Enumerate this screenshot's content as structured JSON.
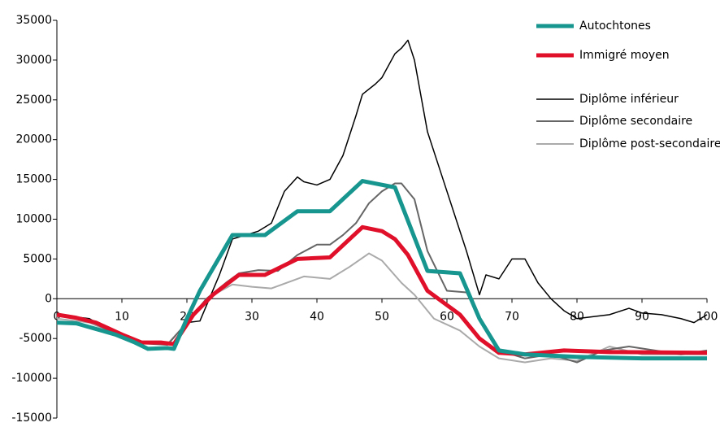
{
  "chart_data": {
    "type": "line",
    "xlim": [
      0,
      100
    ],
    "xticks": [
      0,
      10,
      20,
      30,
      40,
      50,
      60,
      70,
      80,
      90,
      100
    ],
    "ylim": [
      -15000,
      35000
    ],
    "yticks": [
      -15000,
      -10000,
      -5000,
      0,
      5000,
      10000,
      15000,
      20000,
      25000,
      30000,
      35000
    ],
    "series": [
      {
        "name": "Autochtones",
        "color": "#17958f",
        "width": 5,
        "x": [
          0,
          3,
          6,
          9,
          12,
          14,
          17,
          18,
          20,
          22,
          27,
          32,
          37,
          42,
          47,
          52,
          57,
          62,
          65,
          68,
          72,
          80,
          90,
          100
        ],
        "values": [
          -3000,
          -3100,
          -3800,
          -4500,
          -5500,
          -6300,
          -6200,
          -6300,
          -2500,
          1000,
          8000,
          8000,
          11000,
          11000,
          14800,
          14000,
          3500,
          3200,
          -2500,
          -6500,
          -7000,
          -7300,
          -7500,
          -7500
        ]
      },
      {
        "name": "Immigré moyen",
        "color": "#e0102a",
        "width": 5,
        "x": [
          0,
          3,
          6,
          10,
          13,
          16,
          18,
          21,
          24,
          28,
          32,
          37,
          42,
          47,
          50,
          52,
          54,
          57,
          62,
          65,
          68,
          72,
          78,
          85,
          100
        ],
        "values": [
          -2000,
          -2400,
          -3000,
          -4500,
          -5500,
          -5500,
          -5700,
          -2000,
          500,
          3000,
          3000,
          5000,
          5200,
          9000,
          8500,
          7500,
          5500,
          1000,
          -2000,
          -5000,
          -6800,
          -7000,
          -6500,
          -6700,
          -6800
        ]
      },
      {
        "name": "Diplôme inférieur",
        "color": "#000000",
        "width": 1.5,
        "x": [
          0,
          5,
          10,
          13,
          16,
          18,
          20,
          22,
          25,
          27,
          29,
          31,
          33,
          35,
          37,
          38,
          40,
          42,
          44,
          46,
          47,
          49,
          50,
          52,
          53,
          54,
          55,
          57,
          59,
          61,
          63,
          65,
          66,
          68,
          70,
          72,
          74,
          76,
          78,
          80,
          85,
          88,
          90,
          93,
          96,
          98,
          100
        ],
        "values": [
          -2000,
          -2500,
          -4800,
          -5500,
          -5400,
          -5600,
          -3000,
          -2800,
          3000,
          7500,
          8000,
          8500,
          9500,
          13500,
          15300,
          14700,
          14300,
          15000,
          18000,
          23000,
          25700,
          27000,
          27800,
          30800,
          31500,
          32500,
          30000,
          21000,
          16000,
          11000,
          6000,
          500,
          3000,
          2500,
          5000,
          5000,
          2000,
          0,
          -1500,
          -2500,
          -2000,
          -1200,
          -1800,
          -2000,
          -2500,
          -3000,
          -2000
        ]
      },
      {
        "name": "Diplôme secondaire",
        "color": "#666666",
        "width": 2,
        "x": [
          0,
          5,
          10,
          13,
          17,
          20,
          23,
          26,
          28,
          31,
          34,
          37,
          40,
          42,
          44,
          46,
          48,
          50,
          52,
          53,
          55,
          57,
          60,
          63,
          66,
          68,
          72,
          76,
          80,
          84,
          88,
          92,
          96,
          100
        ],
        "values": [
          -2000,
          -2800,
          -4800,
          -5600,
          -5800,
          -3000,
          0,
          2000,
          3200,
          3600,
          3500,
          5500,
          6800,
          6800,
          8000,
          9500,
          12000,
          13500,
          14500,
          14500,
          12500,
          6000,
          1000,
          800,
          -4000,
          -6500,
          -7500,
          -7000,
          -8000,
          -6500,
          -6000,
          -6500,
          -7000,
          -6500
        ]
      },
      {
        "name": "Diplôme post-secondaire",
        "color": "#aaaaaa",
        "width": 2,
        "x": [
          0,
          5,
          10,
          13,
          17,
          20,
          23,
          27,
          30,
          33,
          36,
          38,
          42,
          45,
          48,
          50,
          53,
          55,
          58,
          62,
          65,
          68,
          72,
          76,
          80,
          85,
          90,
          100
        ],
        "values": [
          -2500,
          -3000,
          -4800,
          -5500,
          -5700,
          -3000,
          0,
          1800,
          1500,
          1300,
          2200,
          2800,
          2500,
          4000,
          5700,
          4800,
          2000,
          500,
          -2500,
          -4000,
          -6000,
          -7500,
          -8000,
          -7500,
          -7800,
          -6000,
          -7000,
          -7000
        ]
      }
    ]
  }
}
